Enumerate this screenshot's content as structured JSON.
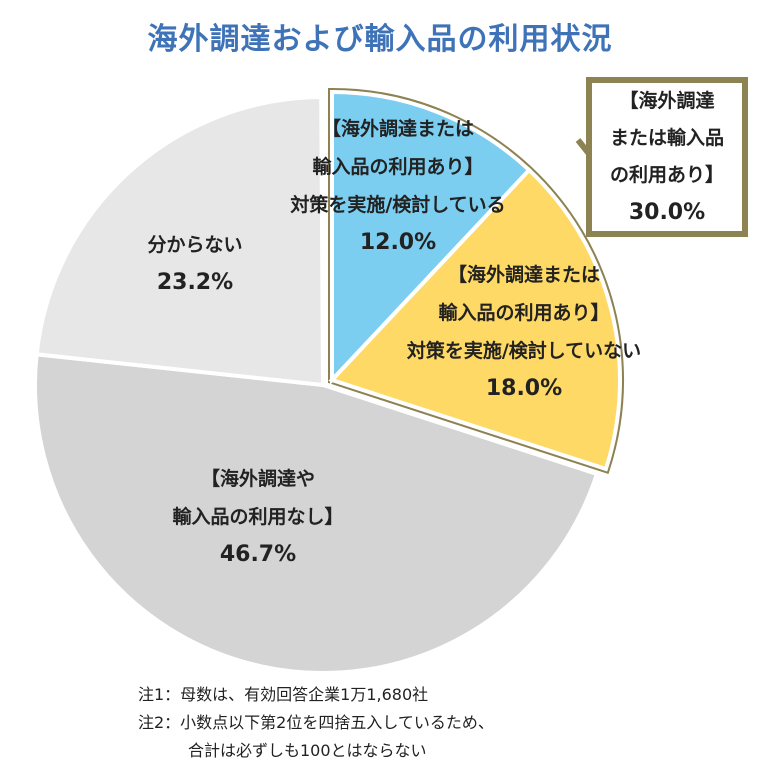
{
  "chart_data": {
    "type": "pie",
    "title": "海外調達および輸入品の利用状況",
    "slices": [
      {
        "name": "measures_yes",
        "label_lines": [
          "【海外調達または",
          "輸入品の利用あり】",
          "対策を実施/検討している"
        ],
        "value": 12.0,
        "value_text": "12.0%",
        "color": "#7ccef0",
        "exploded": true
      },
      {
        "name": "measures_no",
        "label_lines": [
          "【海外調達または",
          "輸入品の利用あり】",
          "対策を実施/検討していない"
        ],
        "value": 18.0,
        "value_text": "18.0%",
        "color": "#ffd966",
        "exploded": true
      },
      {
        "name": "no_use",
        "label_lines": [
          "【海外調達や",
          "輸入品の利用なし】"
        ],
        "value": 46.7,
        "value_text": "46.7%",
        "color": "#d4d4d4",
        "exploded": false
      },
      {
        "name": "unknown",
        "label_lines": [
          "分からない"
        ],
        "value": 23.2,
        "value_text": "23.2%",
        "color": "#e7e7e7",
        "exploded": false
      }
    ],
    "group_callout": {
      "label_lines": [
        "【海外調達",
        "または輸入品",
        "の利用あり】"
      ],
      "value": 30.0,
      "value_text": "30.0%",
      "border_color": "#8c8252"
    }
  },
  "notes": [
    "注1：母数は、有効回答企業1万1,680社",
    "注2：小数点以下第2位を四捨五入しているため、",
    "合計は必ずしも100とはならない"
  ]
}
